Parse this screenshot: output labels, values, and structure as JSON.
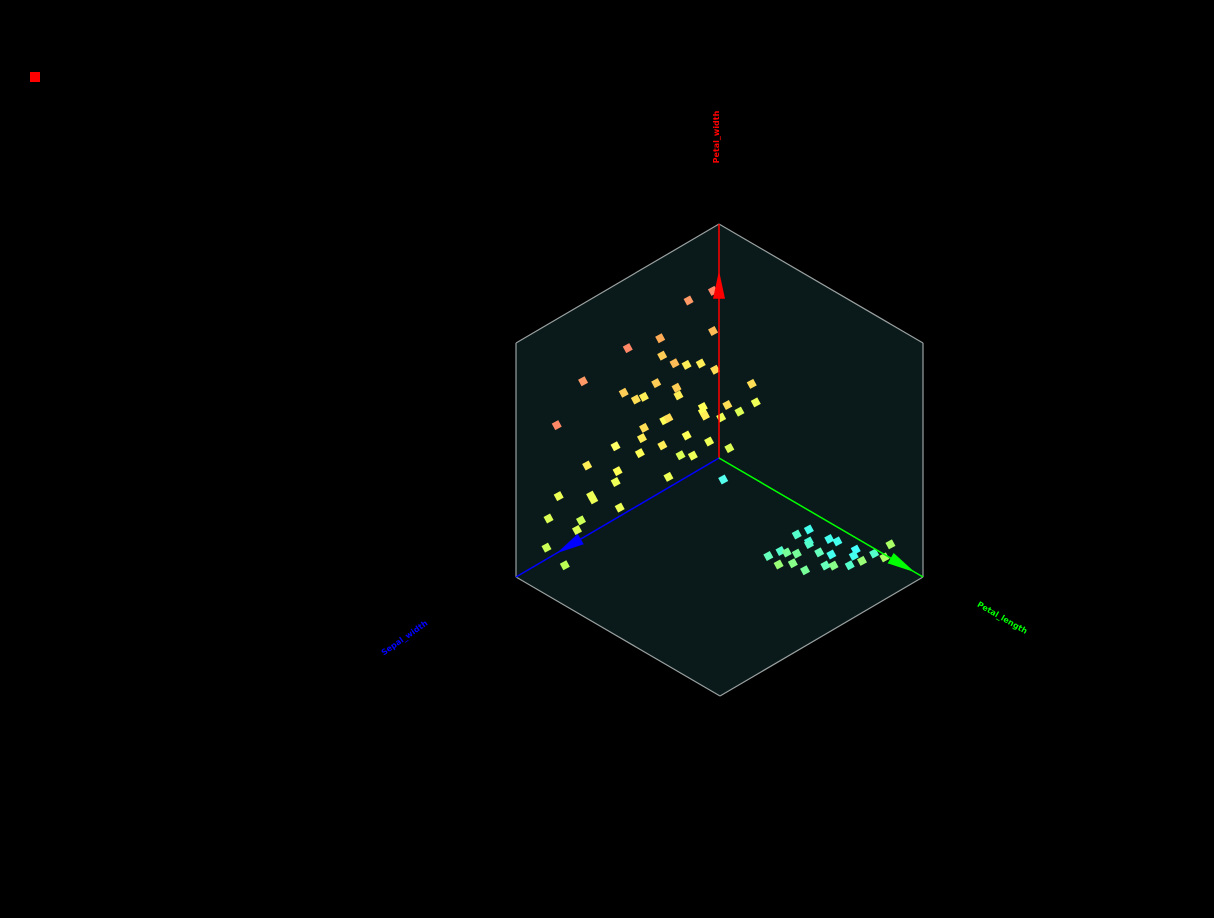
{
  "indicator": {
    "color": "#ff0000"
  },
  "colors": {
    "background": "#000000",
    "box_face": "#0a1a1a",
    "box_edge": "#9aa0a0",
    "axis_z": "#ff0000",
    "axis_y": "#0000ff",
    "axis_x": "#00ff00"
  },
  "chart_data": {
    "type": "scatter",
    "subtype": "3d-scatter",
    "axes": {
      "x": {
        "label": "Petal_length",
        "color": "#00ff00"
      },
      "y": {
        "label": "Sepal_width",
        "color": "#0000ff"
      },
      "z": {
        "label": "Petal_width",
        "color": "#ff0000"
      }
    },
    "points": [
      {
        "x": 0.62,
        "y": 0.18,
        "z": 0.05,
        "color": "#44ffdd"
      },
      {
        "x": 0.66,
        "y": 0.22,
        "z": 0.08,
        "color": "#55ffcc"
      },
      {
        "x": 0.7,
        "y": 0.15,
        "z": 0.02,
        "color": "#44ffee"
      },
      {
        "x": 0.74,
        "y": 0.25,
        "z": 0.1,
        "color": "#66ffbb"
      },
      {
        "x": 0.6,
        "y": 0.3,
        "z": 0.06,
        "color": "#55ffcc"
      },
      {
        "x": 0.78,
        "y": 0.12,
        "z": 0.04,
        "color": "#44ffee"
      },
      {
        "x": 0.68,
        "y": 0.35,
        "z": 0.12,
        "color": "#77ff99"
      },
      {
        "x": 0.72,
        "y": 0.05,
        "z": 0.0,
        "color": "#44ffff"
      },
      {
        "x": 0.64,
        "y": 0.1,
        "z": 0.03,
        "color": "#44ffee"
      },
      {
        "x": 0.8,
        "y": 0.28,
        "z": 0.09,
        "color": "#66ffbb"
      },
      {
        "x": 0.58,
        "y": 0.2,
        "z": 0.07,
        "color": "#55ffcc"
      },
      {
        "x": 0.76,
        "y": 0.4,
        "z": 0.14,
        "color": "#88ff88"
      },
      {
        "x": 0.82,
        "y": 0.18,
        "z": 0.05,
        "color": "#55ffcc"
      },
      {
        "x": 0.7,
        "y": 0.32,
        "z": 0.11,
        "color": "#77ff99"
      },
      {
        "x": 0.66,
        "y": 0.08,
        "z": 0.02,
        "color": "#44ffee"
      },
      {
        "x": 0.86,
        "y": 0.3,
        "z": 0.13,
        "color": "#88ff88"
      },
      {
        "x": 0.74,
        "y": 0.45,
        "z": 0.15,
        "color": "#99ff77"
      },
      {
        "x": 0.62,
        "y": 0.38,
        "z": 0.09,
        "color": "#66ffbb"
      },
      {
        "x": 0.9,
        "y": 0.2,
        "z": 0.12,
        "color": "#99ff77"
      },
      {
        "x": 0.94,
        "y": 0.1,
        "z": 0.16,
        "color": "#aaff66"
      },
      {
        "x": 0.96,
        "y": 0.15,
        "z": 0.14,
        "color": "#aaff66"
      },
      {
        "x": 0.56,
        "y": 0.12,
        "z": 0.04,
        "color": "#44ffee"
      },
      {
        "x": 0.84,
        "y": 0.08,
        "z": 0.06,
        "color": "#55ffcc"
      },
      {
        "x": 0.78,
        "y": 0.36,
        "z": 0.1,
        "color": "#77ff99"
      },
      {
        "x": 0.12,
        "y": 0.1,
        "z": 0.02,
        "color": "#55ffee"
      },
      {
        "x": 0.05,
        "y": 0.9,
        "z": 0.1,
        "color": "#ccff55"
      },
      {
        "x": 0.08,
        "y": 0.7,
        "z": 0.22,
        "color": "#eeff55"
      },
      {
        "x": 0.1,
        "y": 0.6,
        "z": 0.3,
        "color": "#ffff55"
      },
      {
        "x": 0.04,
        "y": 0.55,
        "z": 0.35,
        "color": "#ffff66"
      },
      {
        "x": 0.12,
        "y": 0.5,
        "z": 0.4,
        "color": "#ffee55"
      },
      {
        "x": 0.06,
        "y": 0.45,
        "z": 0.28,
        "color": "#ffff55"
      },
      {
        "x": 0.15,
        "y": 0.4,
        "z": 0.45,
        "color": "#ffdd55"
      },
      {
        "x": 0.02,
        "y": 0.65,
        "z": 0.18,
        "color": "#eeff55"
      },
      {
        "x": 0.1,
        "y": 0.8,
        "z": 0.15,
        "color": "#ddff55"
      },
      {
        "x": 0.18,
        "y": 0.55,
        "z": 0.5,
        "color": "#ffdd55"
      },
      {
        "x": 0.08,
        "y": 0.35,
        "z": 0.38,
        "color": "#ffff55"
      },
      {
        "x": 0.14,
        "y": 0.3,
        "z": 0.32,
        "color": "#ffff55"
      },
      {
        "x": 0.2,
        "y": 0.45,
        "z": 0.25,
        "color": "#eeff55"
      },
      {
        "x": 0.05,
        "y": 0.25,
        "z": 0.42,
        "color": "#ffee55"
      },
      {
        "x": 0.12,
        "y": 0.2,
        "z": 0.36,
        "color": "#ffff55"
      },
      {
        "x": 0.22,
        "y": 0.35,
        "z": 0.3,
        "color": "#eeff55"
      },
      {
        "x": 0.03,
        "y": 0.4,
        "z": 0.48,
        "color": "#ffee55"
      },
      {
        "x": 0.16,
        "y": 0.65,
        "z": 0.2,
        "color": "#eeff55"
      },
      {
        "x": 0.09,
        "y": 0.5,
        "z": 0.55,
        "color": "#ffdd55"
      },
      {
        "x": 0.18,
        "y": 0.25,
        "z": 0.4,
        "color": "#ffee55"
      },
      {
        "x": 0.25,
        "y": 0.3,
        "z": 0.35,
        "color": "#eeff55"
      },
      {
        "x": 0.07,
        "y": 0.15,
        "z": 0.33,
        "color": "#ffff55"
      },
      {
        "x": 0.11,
        "y": 0.1,
        "z": 0.28,
        "color": "#eeff55"
      },
      {
        "x": 0.2,
        "y": 0.15,
        "z": 0.22,
        "color": "#ddff55"
      },
      {
        "x": 0.15,
        "y": 0.05,
        "z": 0.3,
        "color": "#ddff55"
      },
      {
        "x": 0.24,
        "y": 0.2,
        "z": 0.45,
        "color": "#ffdd55"
      },
      {
        "x": 0.02,
        "y": 0.3,
        "z": 0.6,
        "color": "#ffcc55"
      },
      {
        "x": 0.1,
        "y": 0.75,
        "z": 0.4,
        "color": "#ffee55"
      },
      {
        "x": 0.06,
        "y": 0.85,
        "z": 0.3,
        "color": "#eeff55"
      },
      {
        "x": 0.13,
        "y": 0.6,
        "z": 0.65,
        "color": "#ffcc55"
      },
      {
        "x": 0.04,
        "y": 0.2,
        "z": 0.52,
        "color": "#ffee55"
      },
      {
        "x": 0.17,
        "y": 0.38,
        "z": 0.58,
        "color": "#ffcc55"
      },
      {
        "x": 0.22,
        "y": 0.5,
        "z": 0.42,
        "color": "#ffee55"
      },
      {
        "x": 0.08,
        "y": 0.92,
        "z": 0.25,
        "color": "#ddff55"
      },
      {
        "x": 0.26,
        "y": 0.1,
        "z": 0.5,
        "color": "#ffdd55"
      },
      {
        "x": 0.14,
        "y": 0.45,
        "z": 0.62,
        "color": "#ffcc55"
      },
      {
        "x": 0.01,
        "y": 0.1,
        "z": 0.46,
        "color": "#ffee55"
      },
      {
        "x": 0.19,
        "y": 0.7,
        "z": 0.35,
        "color": "#eeff55"
      },
      {
        "x": 0.23,
        "y": 0.05,
        "z": 0.38,
        "color": "#eeff55"
      },
      {
        "x": 0.09,
        "y": 0.28,
        "z": 0.2,
        "color": "#ddff55"
      },
      {
        "x": 0.16,
        "y": 0.18,
        "z": 0.55,
        "color": "#ffdd55"
      },
      {
        "x": 0.12,
        "y": 0.88,
        "z": 0.05,
        "color": "#bbff55"
      },
      {
        "x": 0.04,
        "y": 0.72,
        "z": 0.12,
        "color": "#ccff55"
      },
      {
        "x": 0.05,
        "y": 0.2,
        "z": 0.8,
        "color": "#ff9966"
      },
      {
        "x": 0.02,
        "y": 0.05,
        "z": 0.75,
        "color": "#ff8866"
      },
      {
        "x": 0.08,
        "y": 0.75,
        "z": 0.75,
        "color": "#ff9966"
      },
      {
        "x": 0.1,
        "y": 0.55,
        "z": 0.8,
        "color": "#ff8866"
      },
      {
        "x": 0.06,
        "y": 0.35,
        "z": 0.72,
        "color": "#ffaa55"
      },
      {
        "x": 0.15,
        "y": 0.95,
        "z": 0.7,
        "color": "#ff8866"
      },
      {
        "x": 0.12,
        "y": 0.15,
        "z": 0.68,
        "color": "#ffbb55"
      },
      {
        "x": 0.18,
        "y": 0.4,
        "z": 0.7,
        "color": "#ffbb55"
      }
    ]
  }
}
